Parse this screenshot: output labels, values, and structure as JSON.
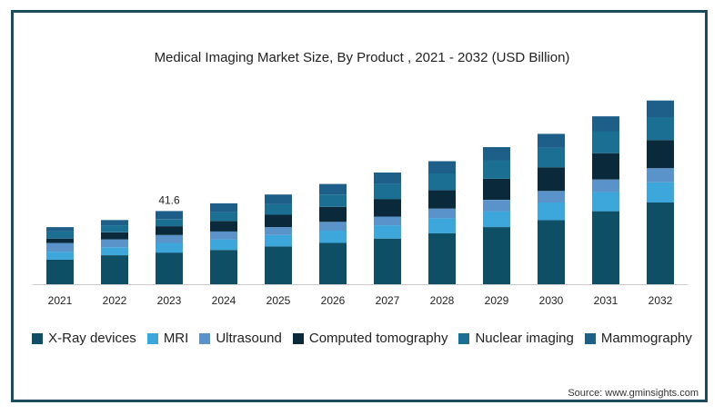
{
  "chart_data": {
    "type": "bar",
    "stacked": true,
    "title": "Medical Imaging Market Size, By Product , 2021 - 2032 (USD Billion)",
    "xlabel": "",
    "ylabel": "",
    "categories": [
      "2021",
      "2022",
      "2023",
      "2024",
      "2025",
      "2026",
      "2027",
      "2028",
      "2029",
      "2030",
      "2031",
      "2032"
    ],
    "ylim": [
      0,
      110
    ],
    "series": [
      {
        "name": "X-Ray devices",
        "color": "#0e4f65",
        "values": [
          14.0,
          16.5,
          18.0,
          19.5,
          21.5,
          23.5,
          26.0,
          29.0,
          32.5,
          36.5,
          41.5,
          46.5
        ]
      },
      {
        "name": "MRI",
        "color": "#3da7db",
        "values": [
          4.5,
          4.5,
          5.5,
          6.0,
          6.5,
          7.0,
          7.5,
          8.5,
          9.0,
          10.0,
          11.0,
          11.5
        ]
      },
      {
        "name": "Ultrasound",
        "color": "#5a93c9",
        "values": [
          5.0,
          4.5,
          4.5,
          4.5,
          4.5,
          5.0,
          5.0,
          5.5,
          6.5,
          6.5,
          7.0,
          8.0
        ]
      },
      {
        "name": "Computed tomography",
        "color": "#0a2a3c",
        "values": [
          2.5,
          4.0,
          5.0,
          6.0,
          7.0,
          8.5,
          10.0,
          10.5,
          12.0,
          13.5,
          15.0,
          16.0
        ]
      },
      {
        "name": "Nuclear imaging",
        "color": "#1a6f93",
        "values": [
          4.0,
          4.0,
          4.0,
          5.0,
          6.0,
          7.0,
          8.5,
          9.5,
          10.5,
          11.0,
          12.5,
          13.0
        ]
      },
      {
        "name": "Mammography",
        "color": "#1e5f8a",
        "values": [
          2.5,
          3.0,
          4.6,
          5.0,
          5.5,
          6.0,
          6.5,
          7.0,
          7.5,
          8.0,
          8.5,
          9.5
        ]
      }
    ],
    "data_labels": [
      {
        "category": "2023",
        "text": "41.6"
      }
    ],
    "grid": false,
    "legend_position": "bottom"
  },
  "source": "Source: www.gminsights.com"
}
